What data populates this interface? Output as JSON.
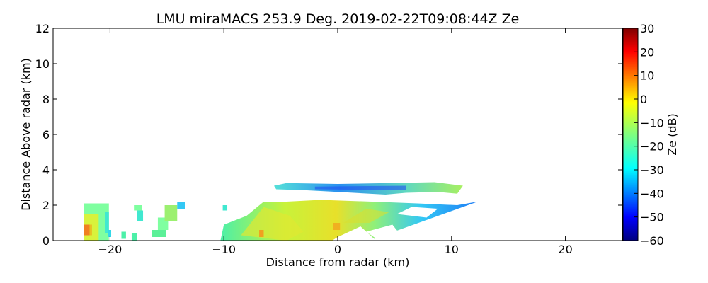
{
  "chart_data": {
    "type": "heatmap",
    "title": "LMU miraMACS 253.9 Deg. 2019-02-22T09:08:44Z  Ze",
    "xlabel": "Distance from radar (km)",
    "ylabel": "Distance Above radar  (km)",
    "xlim": [
      -25,
      25
    ],
    "ylim": [
      0,
      12
    ],
    "x_ticks": [
      -20,
      -10,
      0,
      10,
      20
    ],
    "x_tick_labels": [
      "−20",
      "−10",
      "0",
      "10",
      "20"
    ],
    "y_ticks": [
      0,
      2,
      4,
      6,
      8,
      10,
      12
    ],
    "y_tick_labels": [
      "0",
      "2",
      "4",
      "6",
      "8",
      "10",
      "12"
    ],
    "grid": false,
    "colorbar": {
      "label": "Ze (dB)",
      "range": [
        -60,
        30
      ],
      "colormap": "jet",
      "ticks": [
        30,
        20,
        10,
        0,
        -10,
        -20,
        -30,
        -40,
        -50,
        -60
      ],
      "tick_labels": [
        "30",
        "20",
        "10",
        "0",
        "−10",
        "−20",
        "−30",
        "−40",
        "−50",
        "−60"
      ]
    },
    "echo_regions": [
      {
        "name": "isolated-columns",
        "x_range": [
          -22.3,
          -13.3
        ],
        "z_range": [
          0,
          2.2
        ],
        "ze_range": [
          -35,
          10
        ]
      },
      {
        "name": "strong-cell",
        "x_range": [
          -22.3,
          -21.6
        ],
        "z_range": [
          0.3,
          0.9
        ],
        "ze_range": [
          0,
          12
        ]
      },
      {
        "name": "lower-layer",
        "x_range": [
          -10.3,
          12.3
        ],
        "z_range": [
          0,
          2.3
        ],
        "ze_range": [
          -50,
          0
        ]
      },
      {
        "name": "upper-layer",
        "x_range": [
          -5.6,
          11.0
        ],
        "z_range": [
          2.6,
          3.3
        ],
        "ze_range": [
          -50,
          -15
        ]
      }
    ]
  }
}
